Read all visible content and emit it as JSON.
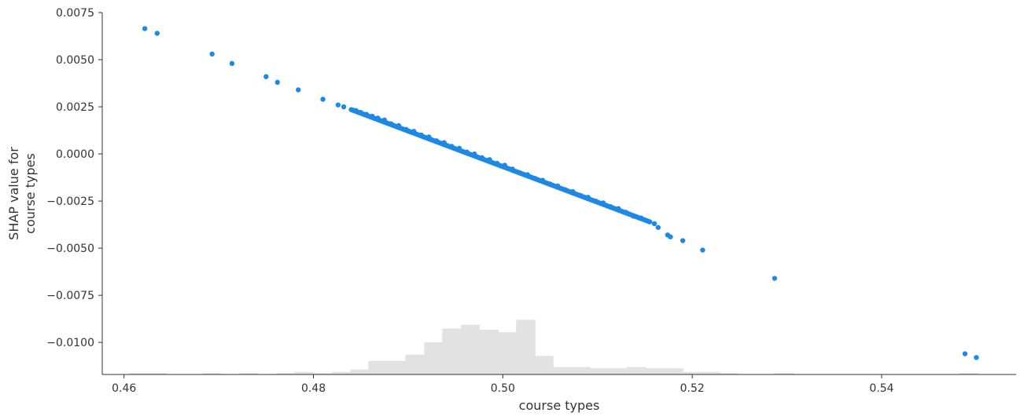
{
  "chart_data": {
    "type": "scatter",
    "title": "",
    "xlabel": "course types",
    "ylabel_lines": [
      "SHAP value for",
      "course types"
    ],
    "xlim": [
      0.4577,
      0.5542
    ],
    "ylim": [
      -0.0117,
      0.0075
    ],
    "x_ticks": [
      0.46,
      0.48,
      0.5,
      0.52,
      0.54
    ],
    "x_tick_labels": [
      "0.46",
      "0.48",
      "0.50",
      "0.52",
      "0.54"
    ],
    "y_ticks": [
      0.0075,
      0.005,
      0.0025,
      0.0,
      -0.0025,
      -0.005,
      -0.0075,
      -0.01
    ],
    "y_tick_labels": [
      "0.0075",
      "0.0050",
      "0.0025",
      "0.0000",
      "−0.0025",
      "−0.0050",
      "−0.0075",
      "−0.0100"
    ],
    "grid": false,
    "point_color": "#1E88E5",
    "histogram_color": "#E2E2E2",
    "points": {
      "x": [
        0.4622,
        0.4635,
        0.4693,
        0.4714,
        0.475,
        0.4762,
        0.4784,
        0.481,
        0.4826,
        0.4832,
        0.484,
        0.4845,
        0.485,
        0.4856,
        0.4862,
        0.4868,
        0.4875,
        0.4882,
        0.489,
        0.4898,
        0.4906,
        0.4914,
        0.4922,
        0.493,
        0.4938,
        0.4946,
        0.4954,
        0.4962,
        0.497,
        0.4978,
        0.4986,
        0.4994,
        0.5002,
        0.501,
        0.5018,
        0.5026,
        0.5034,
        0.5042,
        0.505,
        0.5058,
        0.5066,
        0.5074,
        0.5082,
        0.509,
        0.5098,
        0.5106,
        0.5114,
        0.5122,
        0.513,
        0.5138,
        0.5146,
        0.5155,
        0.516,
        0.5164,
        0.5174,
        0.5177,
        0.519,
        0.5211,
        0.5287,
        0.5488,
        0.55
      ],
      "y": [
        0.00665,
        0.0064,
        0.0053,
        0.0048,
        0.0041,
        0.0038,
        0.0034,
        0.0029,
        0.0026,
        0.0025,
        0.00235,
        0.0023,
        0.0022,
        0.0021,
        0.002,
        0.0019,
        0.0018,
        0.0016,
        0.0015,
        0.0013,
        0.0012,
        0.001,
        0.0009,
        0.0007,
        0.0006,
        0.0004,
        0.0003,
        0.0001,
        0.0,
        -0.0002,
        -0.0003,
        -0.0005,
        -0.0006,
        -0.0008,
        -0.001,
        -0.0011,
        -0.0013,
        -0.0014,
        -0.0016,
        -0.0017,
        -0.0019,
        -0.002,
        -0.0022,
        -0.0023,
        -0.0025,
        -0.0026,
        -0.0028,
        -0.0029,
        -0.0031,
        -0.0033,
        -0.0034,
        -0.0036,
        -0.0037,
        -0.0039,
        -0.0043,
        -0.0044,
        -0.0046,
        -0.0051,
        -0.0066,
        -0.0106,
        -0.0108
      ]
    },
    "histogram": {
      "bin_edges": [
        0.4605,
        0.4624,
        0.4644,
        0.4663,
        0.4683,
        0.4702,
        0.4722,
        0.4741,
        0.4761,
        0.478,
        0.48,
        0.4819,
        0.4839,
        0.4858,
        0.4878,
        0.4897,
        0.4917,
        0.4936,
        0.4956,
        0.4975,
        0.4995,
        0.5014,
        0.5034,
        0.5053,
        0.5073,
        0.5092,
        0.5112,
        0.5131,
        0.5151,
        0.517,
        0.519,
        0.5209,
        0.5229,
        0.5248,
        0.5268,
        0.5287,
        0.5307,
        0.5326,
        0.5346,
        0.5365,
        0.5385,
        0.5404,
        0.5424,
        0.5443,
        0.5463,
        0.5482,
        0.5502
      ],
      "counts": [
        1,
        1,
        0,
        0,
        1,
        0,
        1,
        0,
        1,
        2,
        1,
        2,
        4,
        11,
        11,
        16,
        26,
        37,
        40,
        36,
        34,
        44,
        15,
        6,
        6,
        5,
        5,
        6,
        5,
        5,
        2,
        2,
        1,
        0,
        0,
        1,
        0,
        0,
        0,
        0,
        0,
        0,
        0,
        0,
        0,
        1,
        0
      ]
    }
  }
}
